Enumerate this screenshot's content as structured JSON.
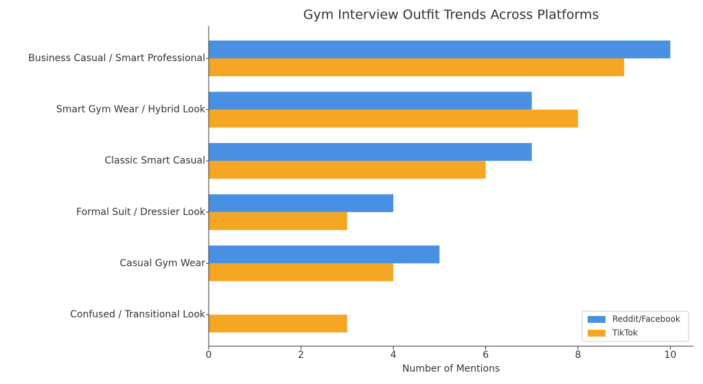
{
  "chart_data": {
    "type": "barh",
    "title": "Gym Interview Outfit Trends Across Platforms",
    "x_label": "Number of Mentions",
    "categories": [
      "Business Casual / Smart Professional",
      "Smart Gym Wear / Hybrid Look",
      "Classic Smart Casual",
      "Formal Suit / Dressier Look",
      "Casual Gym Wear",
      "Confused / Transitional Look"
    ],
    "series": [
      {
        "name": "Reddit/Facebook",
        "color": "#4a90e2",
        "values": [
          10,
          7,
          7,
          4,
          5,
          0
        ]
      },
      {
        "name": "TikTok",
        "color": "#f5a623",
        "values": [
          9,
          8,
          6,
          3,
          4,
          3
        ]
      }
    ],
    "xlim": [
      0,
      10.5
    ],
    "xticks": [
      0,
      2,
      4,
      6,
      8,
      10
    ],
    "legend": "lower right"
  }
}
